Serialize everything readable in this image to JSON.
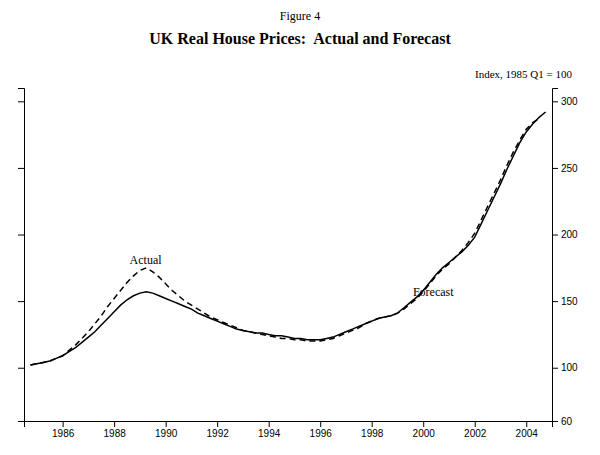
{
  "chart_data": {
    "type": "line",
    "subtitle": "Figure 4",
    "title": "UK Real House Prices:  Actual and Forecast",
    "ylabel": "Index, 1985 Q1 = 100",
    "xlim": [
      1984.5,
      2005.0
    ],
    "xticks": [
      1986,
      1988,
      1990,
      1992,
      1994,
      1996,
      1998,
      2000,
      2002,
      2004
    ],
    "ylim": [
      60,
      310
    ],
    "yticks": [
      60,
      100,
      150,
      200,
      250,
      300
    ],
    "grid": false,
    "series": [
      {
        "color": "#000000",
        "line_style": "dashed",
        "x": [
          1984.75,
          1985.0,
          1985.25,
          1985.5,
          1985.75,
          1986.0,
          1986.25,
          1986.5,
          1986.75,
          1987.0,
          1987.25,
          1987.5,
          1987.75,
          1988.0,
          1988.25,
          1988.5,
          1988.75,
          1989.0,
          1989.25,
          1989.5,
          1989.75,
          1990.0,
          1990.25,
          1990.5,
          1990.75,
          1991.0,
          1991.25,
          1991.5,
          1991.75,
          1992.0,
          1992.25,
          1992.5,
          1992.75,
          1993.0,
          1993.25,
          1993.5,
          1993.75,
          1994.0,
          1994.25,
          1994.5,
          1994.75,
          1995.0,
          1995.25,
          1995.5,
          1995.75,
          1996.0,
          1996.25,
          1996.5,
          1996.75,
          1997.0,
          1997.25,
          1997.5,
          1997.75,
          1998.0,
          1998.25,
          1998.5,
          1998.75,
          1999.0,
          1999.25,
          1999.5,
          1999.75,
          2000.0,
          2000.25,
          2000.5,
          2000.75,
          2001.0,
          2001.25,
          2001.5,
          2001.75,
          2002.0,
          2002.25,
          2002.5,
          2002.75,
          2003.0,
          2003.25,
          2003.5,
          2003.75,
          2004.0,
          2004.25,
          2004.5
        ],
        "values": [
          102,
          103,
          104,
          105,
          107,
          109,
          113,
          117,
          122,
          127,
          133,
          139,
          146,
          152,
          158,
          164,
          169,
          173,
          175,
          172,
          168,
          163,
          158,
          154,
          150,
          147,
          144,
          141,
          138,
          136,
          134,
          132,
          130,
          128,
          127,
          126,
          125,
          124,
          123,
          122,
          122,
          121,
          121,
          120,
          120,
          120,
          121,
          122,
          124,
          126,
          128,
          130,
          133,
          135,
          137,
          138,
          139,
          141,
          144,
          148,
          152,
          157,
          163,
          169,
          174,
          178,
          183,
          188,
          194,
          201,
          211,
          221,
          231,
          241,
          252,
          262,
          271,
          279,
          284,
          287
        ]
      },
      {
        "color": "#000000",
        "line_style": "solid",
        "x": [
          1984.75,
          1985.0,
          1985.25,
          1985.5,
          1985.75,
          1986.0,
          1986.25,
          1986.5,
          1986.75,
          1987.0,
          1987.25,
          1987.5,
          1987.75,
          1988.0,
          1988.25,
          1988.5,
          1988.75,
          1989.0,
          1989.25,
          1989.5,
          1989.75,
          1990.0,
          1990.25,
          1990.5,
          1990.75,
          1991.0,
          1991.25,
          1991.5,
          1991.75,
          1992.0,
          1992.25,
          1992.5,
          1992.75,
          1993.0,
          1993.25,
          1993.5,
          1993.75,
          1994.0,
          1994.25,
          1994.5,
          1994.75,
          1995.0,
          1995.25,
          1995.5,
          1995.75,
          1996.0,
          1996.25,
          1996.5,
          1996.75,
          1997.0,
          1997.25,
          1997.5,
          1997.75,
          1998.0,
          1998.25,
          1998.5,
          1998.75,
          1999.0,
          1999.25,
          1999.5,
          1999.75,
          2000.0,
          2000.25,
          2000.5,
          2000.75,
          2001.0,
          2001.25,
          2001.5,
          2001.75,
          2002.0,
          2002.25,
          2002.5,
          2002.75,
          2003.0,
          2003.25,
          2003.5,
          2003.75,
          2004.0,
          2004.25,
          2004.5,
          2004.75
        ],
        "values": [
          102,
          103,
          104,
          105,
          107,
          109,
          112,
          115,
          119,
          123,
          127,
          132,
          137,
          142,
          147,
          151,
          154,
          156,
          157,
          156,
          154,
          152,
          150,
          148,
          146,
          144,
          141,
          139,
          137,
          135,
          133,
          131,
          129,
          128,
          127,
          126,
          126,
          125,
          124,
          124,
          123,
          122,
          122,
          121,
          121,
          121,
          122,
          123,
          125,
          127,
          129,
          131,
          133,
          135,
          137,
          138,
          139,
          141,
          145,
          149,
          153,
          158,
          164,
          170,
          175,
          179,
          183,
          187,
          192,
          198,
          208,
          218,
          228,
          238,
          249,
          259,
          269,
          277,
          283,
          288,
          292
        ]
      }
    ],
    "annotations": [
      {
        "text": "Actual",
        "x": 1988.6,
        "y": 176
      },
      {
        "text": "Forecast",
        "x": 1999.6,
        "y": 152
      }
    ]
  }
}
